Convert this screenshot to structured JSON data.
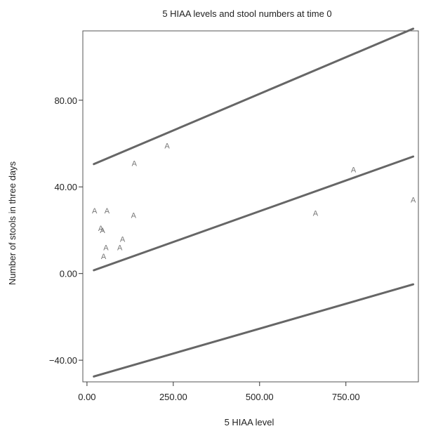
{
  "chart_data": {
    "type": "scatter",
    "title": "5 HIAA levels and stool numbers at time 0",
    "xlabel": "5 HIAA level",
    "ylabel": "Number of stools in three days",
    "xlim": [
      -12,
      960
    ],
    "ylim": [
      -50,
      112
    ],
    "x_ticks": [
      0,
      250,
      500,
      750
    ],
    "x_tick_labels": [
      "0.00",
      "250.00",
      "500.00",
      "750.00"
    ],
    "y_ticks": [
      -40,
      0,
      40,
      80
    ],
    "y_tick_labels": [
      "−40.00",
      "0.00",
      "40.00",
      "80.00"
    ],
    "grid": false,
    "marker": "A",
    "points": [
      {
        "x": 22,
        "y": 29
      },
      {
        "x": 40,
        "y": 21
      },
      {
        "x": 45,
        "y": 20
      },
      {
        "x": 48,
        "y": 8
      },
      {
        "x": 55,
        "y": 12
      },
      {
        "x": 58,
        "y": 29
      },
      {
        "x": 95,
        "y": 12
      },
      {
        "x": 103,
        "y": 16
      },
      {
        "x": 135,
        "y": 27
      },
      {
        "x": 137,
        "y": 51
      },
      {
        "x": 232,
        "y": 59
      },
      {
        "x": 662,
        "y": 28
      },
      {
        "x": 772,
        "y": 48
      },
      {
        "x": 945,
        "y": 34
      }
    ],
    "lines": [
      {
        "name": "upper",
        "x": [
          20,
          945
        ],
        "y": [
          50.5,
          113
        ]
      },
      {
        "name": "fit",
        "x": [
          20,
          945
        ],
        "y": [
          1.5,
          54
        ]
      },
      {
        "name": "lower",
        "x": [
          20,
          945
        ],
        "y": [
          -47.5,
          -5
        ]
      }
    ]
  }
}
